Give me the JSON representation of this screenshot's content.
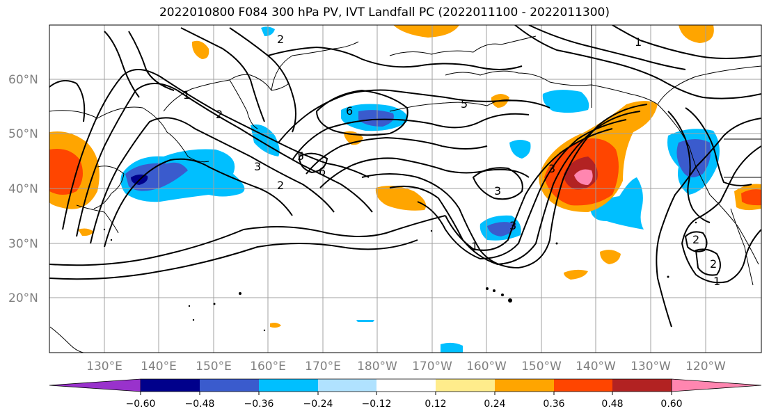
{
  "title": "2022010800 F084 300 hPa PV, IVT Landfall PC (2022011100 - 2022011300)",
  "axes": {
    "lat_labels": [
      "60°N",
      "50°N",
      "40°N",
      "30°N",
      "20°N"
    ],
    "lon_labels": [
      "130°E",
      "140°E",
      "150°E",
      "160°E",
      "170°E",
      "180°W",
      "170°W",
      "160°W",
      "150°W",
      "140°W",
      "130°W",
      "120°W"
    ],
    "grid": true
  },
  "colorbar": {
    "orientation": "horizontal",
    "extend": "both",
    "colors": [
      "#9932cc",
      "#00008b",
      "#3a5bcd",
      "#00bfff",
      "#b0e2ff",
      "#ffffff",
      "#ffec8b",
      "#ffa500",
      "#ff4500",
      "#b22222",
      "#ff86b0"
    ],
    "tick_labels": [
      "−0.60",
      "−0.48",
      "−0.36",
      "−0.24",
      "−0.12",
      "0.12",
      "0.24",
      "0.36",
      "0.48",
      "0.60"
    ]
  },
  "contour_labels": [
    "1",
    "2",
    "3",
    "5",
    "6"
  ]
}
